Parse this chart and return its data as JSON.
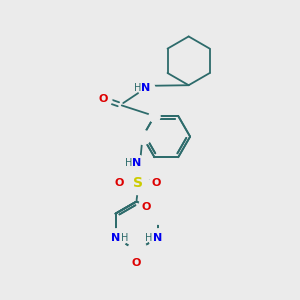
{
  "bg_color": "#ebebeb",
  "bond_color": "#2d6b6b",
  "N_color": "#0000ee",
  "O_color": "#dd0000",
  "S_color": "#cccc00",
  "H_color": "#2d6b6b",
  "lw": 1.3,
  "fs": 7.5,
  "xlim": [
    0,
    10
  ],
  "ylim": [
    0,
    10
  ]
}
